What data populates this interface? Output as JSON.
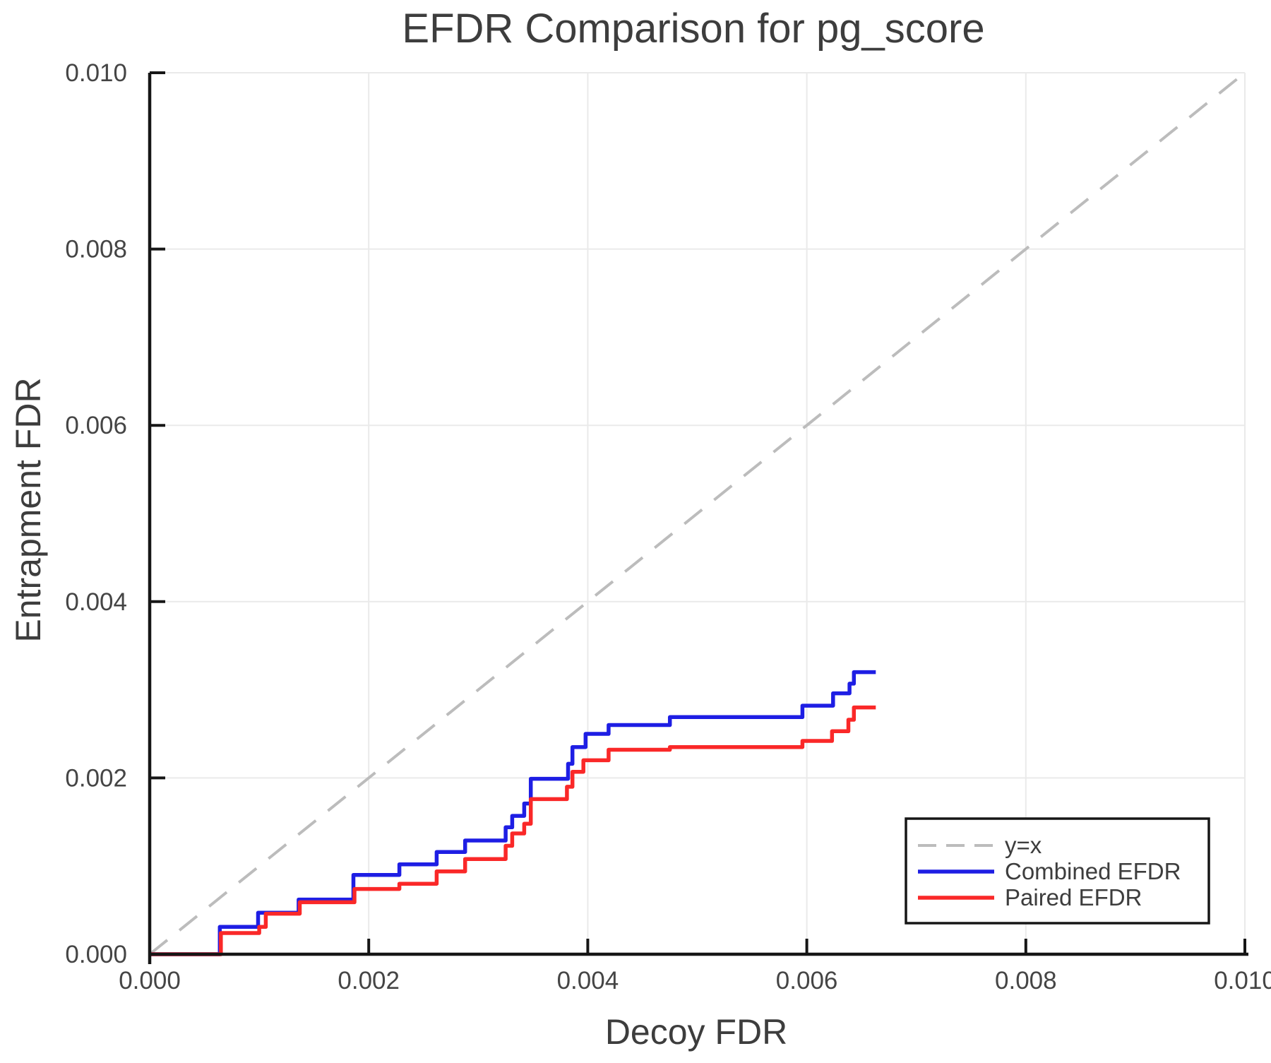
{
  "page": {
    "background": "#ffffff"
  },
  "colors": {
    "background": "#ffffff",
    "grid": "#eaeaea",
    "axis": "#161616",
    "legend_border": "#161616",
    "text_primary": "#3d3d3d",
    "tick_text": "#454545"
  },
  "chart_data": {
    "type": "line",
    "title": "EFDR Comparison for pg_score",
    "xlabel": "Decoy FDR",
    "ylabel": "Entrapment FDR",
    "xlim": [
      0.0,
      0.01
    ],
    "ylim": [
      0.0,
      0.01
    ],
    "xticks": [
      0.0,
      0.002,
      0.004,
      0.006,
      0.008,
      0.01
    ],
    "yticks": [
      0.0,
      0.002,
      0.004,
      0.006,
      0.008,
      0.01
    ],
    "xtick_labels": [
      "0.000",
      "0.002",
      "0.004",
      "0.006",
      "0.008",
      "0.010"
    ],
    "ytick_labels": [
      "0.000",
      "0.002",
      "0.004",
      "0.006",
      "0.008",
      "0.010"
    ],
    "grid": true,
    "legend_position": "lower right",
    "series": [
      {
        "key": "identity-line",
        "name": "y=x",
        "style": "dashed",
        "color": "#bcbcbc",
        "points": [
          [
            0.0,
            0.0
          ],
          [
            0.01,
            0.01
          ]
        ]
      },
      {
        "key": "combined-efdr-line",
        "name": "Combined EFDR",
        "style": "step",
        "color": "#1e1ee4",
        "points": [
          [
            0.0,
            0.0
          ],
          [
            0.00064,
            0.00031
          ],
          [
            0.00099,
            0.00047
          ],
          [
            0.00136,
            0.00062
          ],
          [
            0.00186,
            0.0009
          ],
          [
            0.00228,
            0.00102
          ],
          [
            0.00262,
            0.00116
          ],
          [
            0.00288,
            0.00129
          ],
          [
            0.00325,
            0.00144
          ],
          [
            0.00331,
            0.00157
          ],
          [
            0.00342,
            0.00171
          ],
          [
            0.00348,
            0.00199
          ],
          [
            0.00382,
            0.00216
          ],
          [
            0.00386,
            0.00235
          ],
          [
            0.00398,
            0.0025
          ],
          [
            0.00419,
            0.0026
          ],
          [
            0.00475,
            0.00269
          ],
          [
            0.00596,
            0.00282
          ],
          [
            0.00624,
            0.00296
          ],
          [
            0.00639,
            0.00307
          ],
          [
            0.00643,
            0.0032
          ],
          [
            0.00663,
            0.0032
          ]
        ]
      },
      {
        "key": "paired-efdr-line",
        "name": "Paired EFDR",
        "style": "step",
        "color": "#fa2828",
        "points": [
          [
            0.0,
            0.0
          ],
          [
            0.00065,
            0.00024
          ],
          [
            0.001,
            0.00031
          ],
          [
            0.00106,
            0.00046
          ],
          [
            0.00137,
            0.00059
          ],
          [
            0.00187,
            0.00074
          ],
          [
            0.00228,
            0.0008
          ],
          [
            0.00262,
            0.00094
          ],
          [
            0.00288,
            0.00108
          ],
          [
            0.00325,
            0.00123
          ],
          [
            0.00331,
            0.00137
          ],
          [
            0.00342,
            0.00148
          ],
          [
            0.00348,
            0.00176
          ],
          [
            0.00381,
            0.0019
          ],
          [
            0.00386,
            0.00207
          ],
          [
            0.00396,
            0.0022
          ],
          [
            0.00419,
            0.00232
          ],
          [
            0.00475,
            0.00235
          ],
          [
            0.00596,
            0.00242
          ],
          [
            0.00623,
            0.00253
          ],
          [
            0.00638,
            0.00266
          ],
          [
            0.00643,
            0.0028
          ],
          [
            0.00663,
            0.0028
          ]
        ]
      }
    ]
  }
}
